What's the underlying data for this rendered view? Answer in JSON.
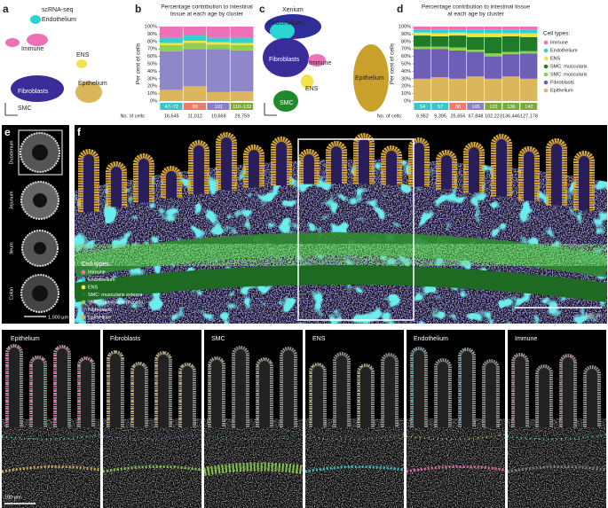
{
  "a": {
    "letter": "a",
    "method": "scRNA-seq",
    "clusters": [
      "Endothelium",
      "Immune",
      "ENS",
      "Fibroblasts",
      "Epithelium",
      "SMC"
    ]
  },
  "chart_data": [
    {
      "type": "bar",
      "letter": "b",
      "title_lines": [
        "Percentage contribution to intestinal",
        "tissue at each age by cluster"
      ],
      "ylabel": "Per cent of cells",
      "categories": [
        "47–72",
        "80",
        "101",
        "110–132"
      ],
      "category_colors": [
        "#3cc5c9",
        "#ec7a6f",
        "#8d7fc4",
        "#7aaa3a"
      ],
      "counts_label": "No. of cells",
      "counts": [
        "16,645",
        "11,012",
        "10,668",
        "29,759"
      ],
      "ylim": [
        0,
        100
      ],
      "yticks": [
        {
          "value": 0,
          "label": "0%"
        },
        {
          "value": 10,
          "label": "10%"
        },
        {
          "value": 20,
          "label": "20%"
        },
        {
          "value": 30,
          "label": "30%"
        },
        {
          "value": 40,
          "label": "40%"
        },
        {
          "value": 50,
          "label": "50%"
        },
        {
          "value": 60,
          "label": "60%"
        },
        {
          "value": 70,
          "label": "70%"
        },
        {
          "value": 80,
          "label": "80%"
        },
        {
          "value": 90,
          "label": "90%"
        },
        {
          "value": 100,
          "label": "100%"
        }
      ],
      "series": [
        {
          "color": "#dcb65c",
          "values": [
            15,
            20,
            12,
            13
          ]
        },
        {
          "color": "#8f87c9",
          "values": [
            52,
            50,
            58,
            55
          ]
        },
        {
          "color": "#8fd14f",
          "values": [
            8,
            8,
            6,
            7
          ]
        },
        {
          "color": "#f2e34a",
          "values": [
            3,
            3,
            3,
            3
          ]
        },
        {
          "color": "#2ad4d0",
          "values": [
            7,
            7,
            6,
            7
          ]
        },
        {
          "color": "#ee70b6",
          "values": [
            15,
            12,
            15,
            15
          ]
        }
      ]
    },
    {
      "type": "bar",
      "letter": "d",
      "title_lines": [
        "Percentage contribution to intestinal tissue",
        "at each age by cluster"
      ],
      "ylabel": "Per cent of cells",
      "categories": [
        "54",
        "57",
        "80",
        "105",
        "122",
        "136",
        "142"
      ],
      "category_colors": [
        "#3cc5c9",
        "#3cc5c9",
        "#ec7a6f",
        "#8d7fc4",
        "#7aaa3a",
        "#7aaa3a",
        "#7aaa3a"
      ],
      "counts_label": "No. of cells",
      "counts": [
        "6,952",
        "9,395",
        "25,656",
        "67,848",
        "102,223",
        "136,446",
        "127,178"
      ],
      "ylim": [
        0,
        100
      ],
      "yticks": [
        {
          "value": 0,
          "label": "0%"
        },
        {
          "value": 10,
          "label": "10%"
        },
        {
          "value": 20,
          "label": "20%"
        },
        {
          "value": 30,
          "label": "30%"
        },
        {
          "value": 40,
          "label": "40%"
        },
        {
          "value": 50,
          "label": "50%"
        },
        {
          "value": 60,
          "label": "60%"
        },
        {
          "value": 70,
          "label": "70%"
        },
        {
          "value": 80,
          "label": "80%"
        },
        {
          "value": 90,
          "label": "90%"
        },
        {
          "value": 100,
          "label": "100%"
        }
      ],
      "legend_title": "Cell types:",
      "series": [
        {
          "name": "Epithelium",
          "color": "#dcb65c",
          "values": [
            30,
            32,
            30,
            33,
            30,
            33,
            30
          ]
        },
        {
          "name": "Fibroblasts",
          "color": "#6c5fb5",
          "values": [
            40,
            38,
            38,
            33,
            30,
            30,
            34
          ]
        },
        {
          "name": "SMC: muscularis",
          "color": "#8fd14f",
          "values": [
            3,
            3,
            4,
            3,
            4,
            3,
            3
          ]
        },
        {
          "name": "SMC: muscularis",
          "color": "#1f7a2a",
          "values": [
            15,
            14,
            16,
            17,
            22,
            21,
            19
          ]
        },
        {
          "name": "ENS",
          "color": "#f2e34a",
          "values": [
            4,
            4,
            4,
            5,
            5,
            4,
            5
          ]
        },
        {
          "name": "Endothelium",
          "color": "#2ad4d0",
          "values": [
            4,
            5,
            4,
            5,
            5,
            5,
            5
          ]
        },
        {
          "name": "Immune",
          "color": "#ee70b6",
          "values": [
            4,
            4,
            4,
            4,
            4,
            4,
            4
          ]
        }
      ]
    }
  ],
  "c": {
    "letter": "c",
    "method": "Xenium",
    "clusters": [
      "Endothelium",
      "Fibroblasts",
      "Immune",
      "ENS",
      "Epithelium",
      "SMC"
    ]
  },
  "e": {
    "letter": "e",
    "sections": [
      "Duodenum",
      "Jejunum",
      "Ileum",
      "Colon"
    ],
    "scale": "1,000 µm"
  },
  "f": {
    "letter": "f",
    "legend_title": "Cell types:",
    "legend": [
      {
        "label": "Immune",
        "color": "#ee70b6"
      },
      {
        "label": "Endothelium",
        "color": "#2ad4d0"
      },
      {
        "label": "ENS",
        "color": "#f2e34a"
      },
      {
        "label": "SMC: muscularis externa",
        "color": "#1f7a2a"
      },
      {
        "label": "SMC: muscularis mucosa",
        "color": "#8fd14f"
      },
      {
        "label": "Fibroblasts",
        "color": "#6c5fb5"
      },
      {
        "label": "Epithelium",
        "color": "#dcb65c"
      }
    ],
    "scale": "500 µm"
  },
  "g": {
    "letter": "g",
    "panels": [
      "Epithelium",
      "Fibroblasts",
      "SMC",
      "ENS",
      "Endothelium",
      "Immune"
    ],
    "scale": "100 µm"
  }
}
